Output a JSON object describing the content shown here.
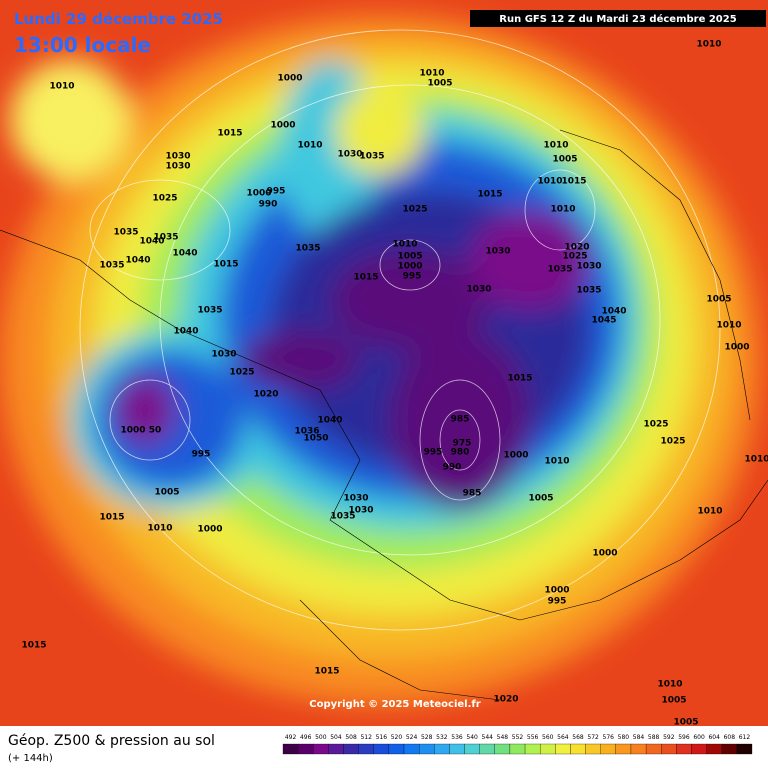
{
  "header": {
    "date": "Lundi 29 décembre 2025",
    "time": "13:00 locale",
    "run": "Run GFS 12 Z du Mardi 23 décembre 2025"
  },
  "copyright": "Copyright © 2025 Meteociel.fr",
  "footer": {
    "title": "Géop. Z500 & pression au sol",
    "lead": "(+ 144h)"
  },
  "legend": {
    "values": [
      492,
      496,
      500,
      504,
      508,
      512,
      516,
      520,
      524,
      528,
      532,
      536,
      540,
      544,
      548,
      552,
      556,
      560,
      564,
      568,
      572,
      576,
      580,
      584,
      588,
      592,
      596,
      600,
      604,
      608,
      612
    ],
    "colors": [
      "#3d0046",
      "#5a006a",
      "#7a0a8a",
      "#5a1a9a",
      "#3a2aa8",
      "#2a3cc0",
      "#1a4ed8",
      "#1060e8",
      "#1478f0",
      "#2090f0",
      "#30a8f0",
      "#40c0e8",
      "#50d0d0",
      "#60d8a8",
      "#70e080",
      "#90e860",
      "#b0f050",
      "#d0f048",
      "#f0f040",
      "#f8e030",
      "#f8c828",
      "#f8b020",
      "#f89820",
      "#f88020",
      "#f06820",
      "#e85020",
      "#e03020",
      "#d01818",
      "#a00808",
      "#600000",
      "#200000"
    ]
  },
  "pressure_labels": [
    1010,
    1015,
    1030,
    1030,
    1025,
    1035,
    1040,
    1035,
    1040,
    1035,
    1040,
    1015,
    1035,
    1040,
    1030,
    1025,
    1020,
    1000,
    1000,
    1010,
    1000,
    995,
    990,
    1035,
    1015,
    1030,
    1035,
    1010,
    1005,
    1025,
    1010,
    1005,
    1000,
    995,
    1015,
    1030,
    1030,
    1010,
    1005,
    1010,
    1015,
    1010,
    1020,
    1025,
    1035,
    1030,
    1035,
    1040,
    1045,
    1010,
    1005,
    1010,
    1000,
    1015,
    1000,
    50,
    995,
    1005,
    1015,
    1010,
    1000,
    1040,
    1036,
    1050,
    1030,
    1030,
    1035,
    985,
    975,
    995,
    980,
    990,
    1000,
    1010,
    985,
    1005,
    1025,
    1025,
    1010,
    1010,
    1000,
    1000,
    995,
    1015,
    1015,
    1020,
    1010,
    1005,
    1005
  ]
}
